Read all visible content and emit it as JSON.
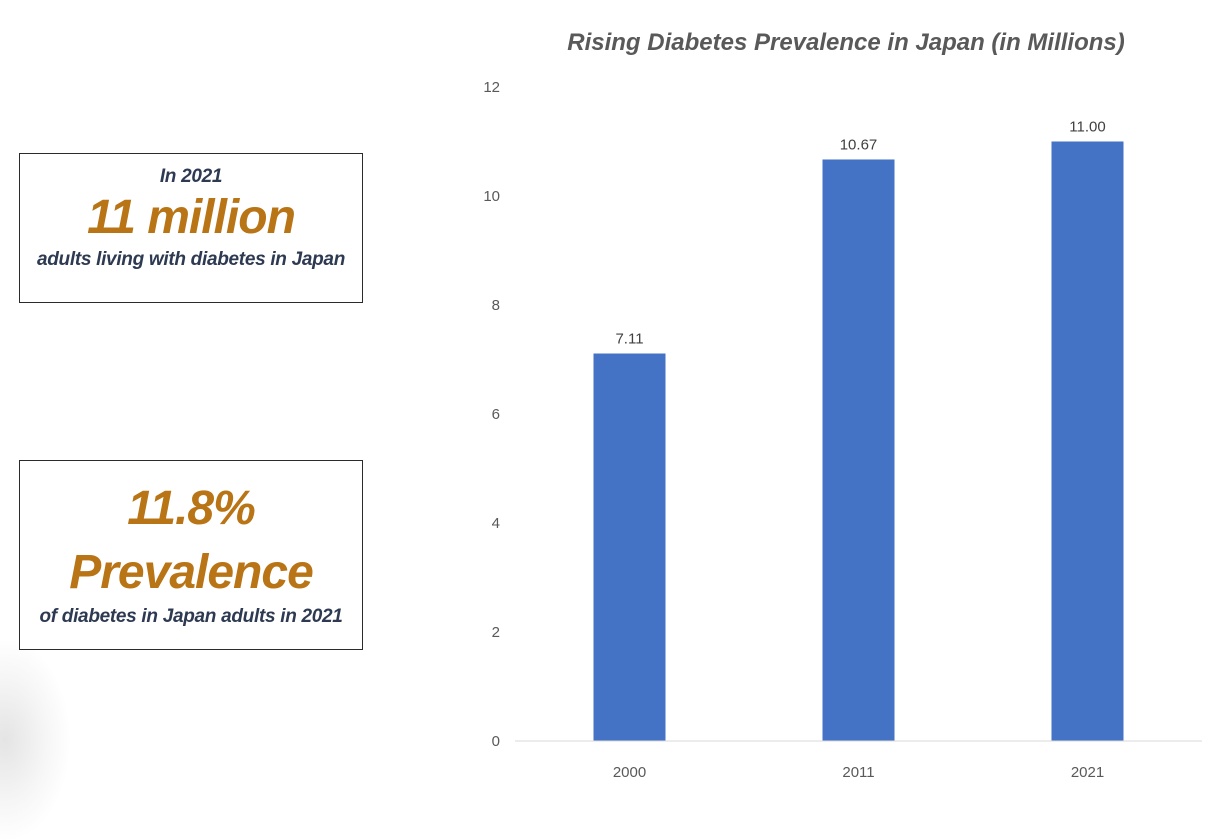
{
  "stats": {
    "box1": {
      "pre": "In 2021",
      "big": "11 million",
      "post": "adults living with diabetes in Japan"
    },
    "box2": {
      "big_line1": "11.8%",
      "big_line2": "Prevalence",
      "post": "of diabetes in Japan adults in 2021"
    }
  },
  "colors": {
    "bar": "#4472c4",
    "highlight_text": "#b87415",
    "body_text": "#2d3a52"
  },
  "chart_data": {
    "type": "bar",
    "title": "Rising Diabetes Prevalence in Japan (in Millions)",
    "categories": [
      "2000",
      "2011",
      "2021"
    ],
    "values": [
      7.11,
      10.67,
      11.0
    ],
    "data_labels": [
      "7.11",
      "10.67",
      "11.00"
    ],
    "ylim": [
      0,
      12
    ],
    "yticks": [
      0,
      2,
      4,
      6,
      8,
      10,
      12
    ],
    "xlabel": "",
    "ylabel": "",
    "grid": false,
    "legend": "none"
  }
}
